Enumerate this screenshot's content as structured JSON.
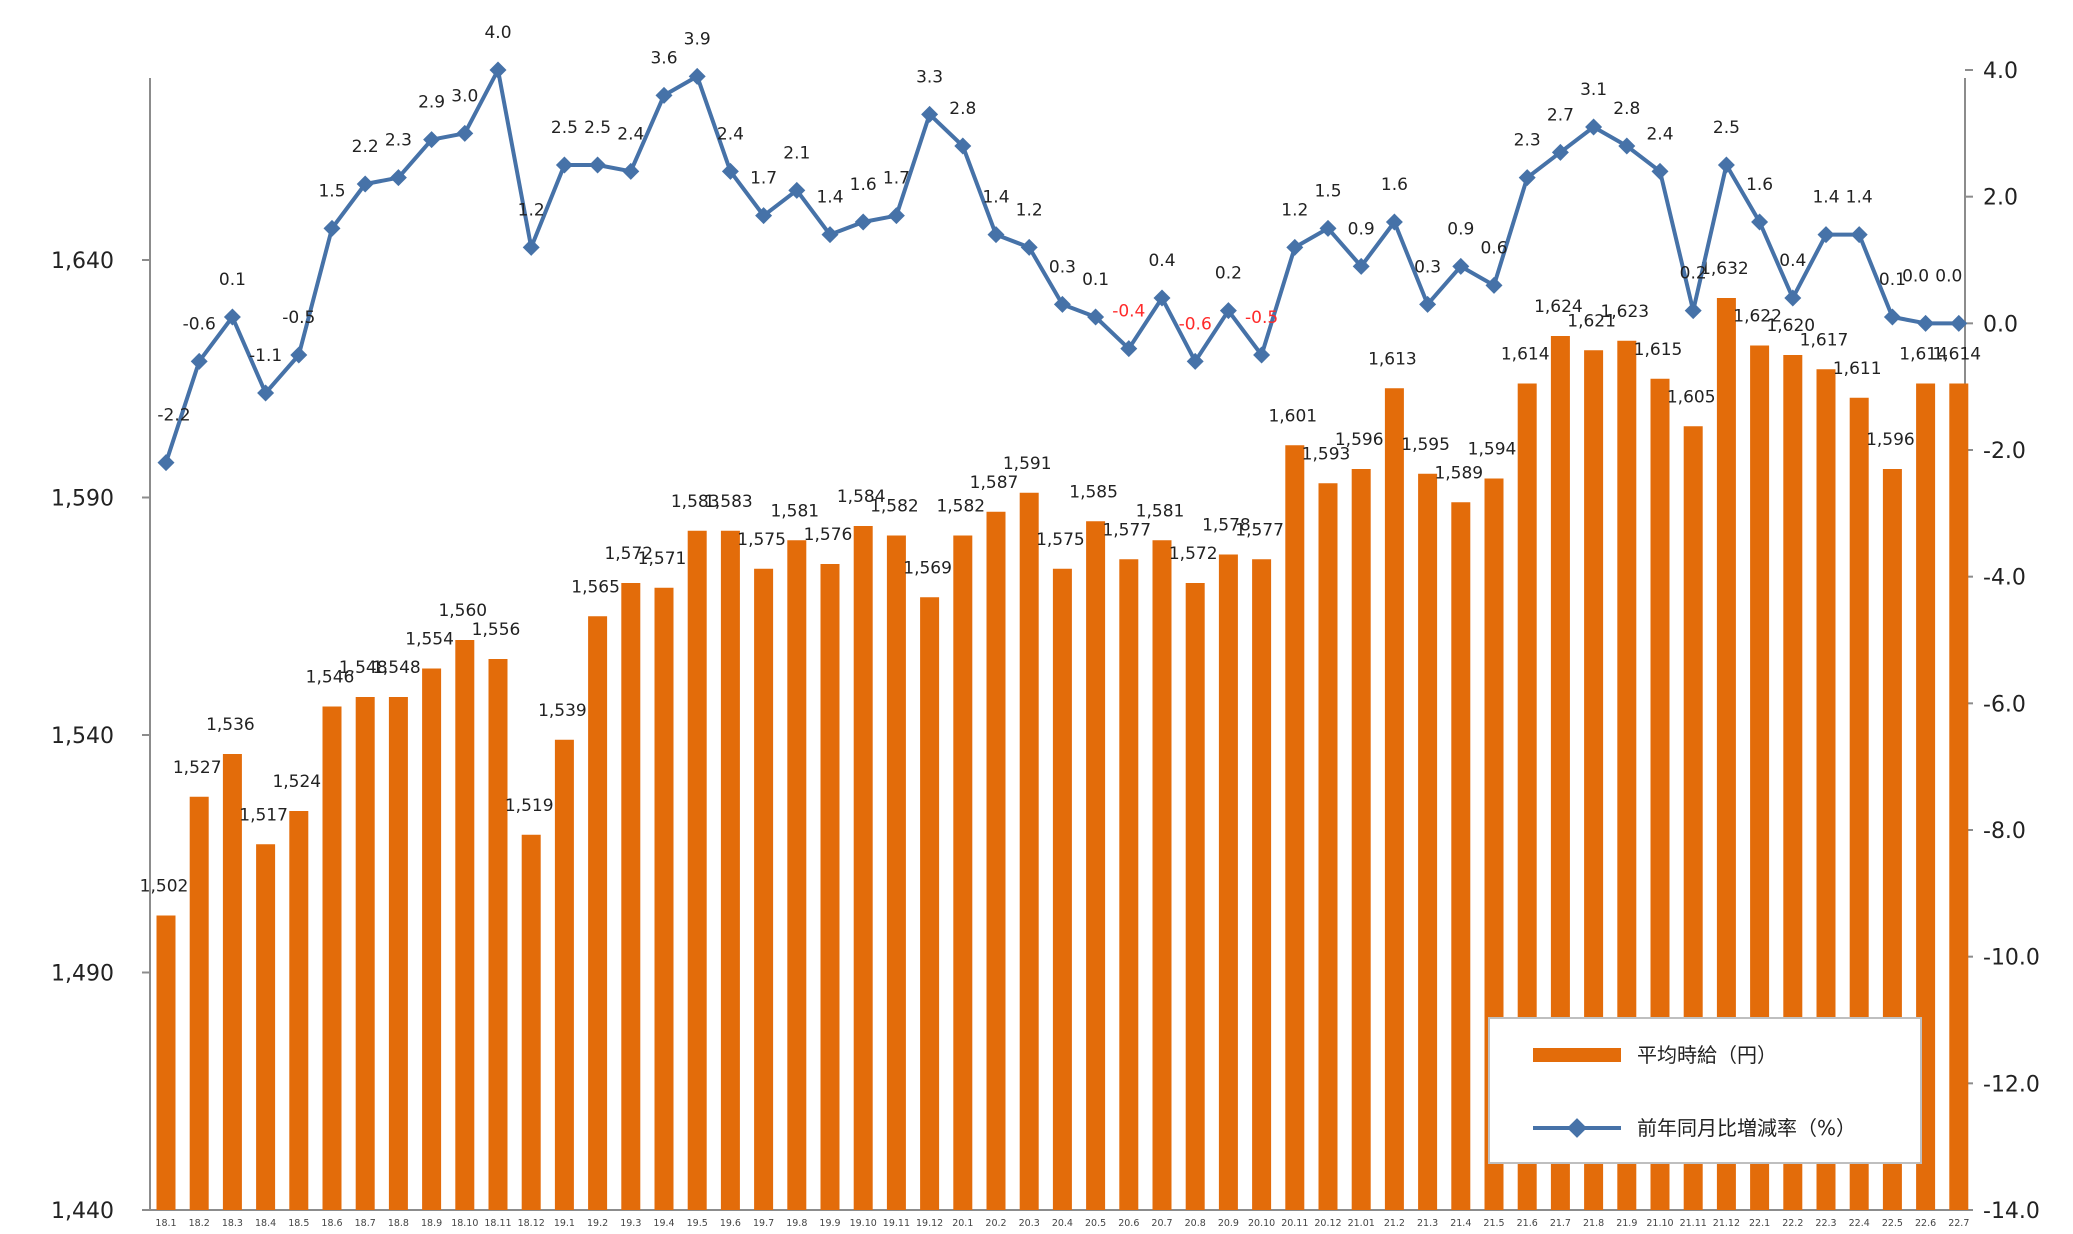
{
  "chart_data": {
    "type": "bar",
    "categories": [
      "18.1",
      "18.2",
      "18.3",
      "18.4",
      "18.5",
      "18.6",
      "18.7",
      "18.8",
      "18.9",
      "18.10",
      "18.11",
      "18.12",
      "19.1",
      "19.2",
      "19.3",
      "19.4",
      "19.5",
      "19.6",
      "19.7",
      "19.8",
      "19.9",
      "19.10",
      "19.11",
      "19.12",
      "20.1",
      "20.2",
      "20.3",
      "20.4",
      "20.5",
      "20.6",
      "20.7",
      "20.8",
      "20.9",
      "20.10",
      "20.11",
      "20.12",
      "21.01",
      "21.2",
      "21.3",
      "21.4",
      "21.5",
      "21.6",
      "21.7",
      "21.8",
      "21.9",
      "21.10",
      "21.11",
      "21.12",
      "22.1",
      "22.2",
      "22.3",
      "22.4",
      "22.5",
      "22.6",
      "22.7"
    ],
    "series": [
      {
        "name": "平均時給（円）",
        "type": "bar",
        "axis": "left",
        "color": "#e36c0a",
        "values": [
          1502,
          1527,
          1536,
          1517,
          1524,
          1546,
          1548,
          1548,
          1554,
          1560,
          1556,
          1519,
          1539,
          1565,
          1572,
          1571,
          1583,
          1583,
          1575,
          1581,
          1576,
          1584,
          1582,
          1569,
          1582,
          1587,
          1591,
          1575,
          1585,
          1577,
          1581,
          1572,
          1578,
          1577,
          1601,
          1593,
          1596,
          1613,
          1595,
          1589,
          1594,
          1614,
          1624,
          1621,
          1623,
          1615,
          1605,
          1632,
          1622,
          1620,
          1617,
          1611,
          1596,
          1614,
          1614
        ],
        "labels": [
          "1,502",
          "1,527",
          "1,536",
          "1,517",
          "1,524",
          "1,546",
          "1,548",
          "1,548",
          "1,554",
          "1,560",
          "1,556",
          "1,519",
          "1,539",
          "1,565",
          "1,572",
          "1,571",
          "1,583",
          "1,583",
          "1,575",
          "1,581",
          "1,576",
          "1,584",
          "1,582",
          "1,569",
          "1,582",
          "1,587",
          "1,591",
          "1,575",
          "1,585",
          "1,577",
          "1,581",
          "1,572",
          "1,578",
          "1,577",
          "1,601",
          "1,593",
          "1,596",
          "1,613",
          "1,595",
          "1,589",
          "1,594",
          "1,614",
          "1,624",
          "1,621",
          "1,623",
          "1,615",
          "1,605",
          "1,632",
          "1,622",
          "1,620",
          "1,617",
          "1,611",
          "1,596",
          "1,614",
          "1,614"
        ]
      },
      {
        "name": "前年同月比増減率（%）",
        "type": "line",
        "axis": "right",
        "color": "#4672a8",
        "values": [
          -2.2,
          -0.6,
          0.1,
          -1.1,
          -0.5,
          1.5,
          2.2,
          2.3,
          2.9,
          3.0,
          4.0,
          1.2,
          2.5,
          2.5,
          2.4,
          3.6,
          3.9,
          2.4,
          1.7,
          2.1,
          1.4,
          1.6,
          1.7,
          3.3,
          2.8,
          1.4,
          1.2,
          0.3,
          0.1,
          -0.4,
          0.4,
          -0.6,
          0.2,
          -0.5,
          1.2,
          1.5,
          0.9,
          1.6,
          0.3,
          0.9,
          0.6,
          2.3,
          2.7,
          3.1,
          2.8,
          2.4,
          0.2,
          2.5,
          1.6,
          0.4,
          1.4,
          1.4,
          0.1,
          0.0,
          0.0
        ],
        "labels": [
          "-2.2",
          "-0.6",
          "0.1",
          "-1.1",
          "-0.5",
          "1.5",
          "2.2",
          "2.3",
          "2.9",
          "3.0",
          "4.0",
          "1.2",
          "2.5",
          "2.5",
          "2.4",
          "3.6",
          "3.9",
          "2.4",
          "1.7",
          "2.1",
          "1.4",
          "1.6",
          "1.7",
          "3.3",
          "2.8",
          "1.4",
          "1.2",
          "0.3",
          "0.1",
          "-0.4",
          "0.4",
          "-0.6",
          "0.2",
          "-0.5",
          "1.2",
          "1.5",
          "0.9",
          "1.6",
          "0.3",
          "0.9",
          "0.6",
          "2.3",
          "2.7",
          "3.1",
          "2.8",
          "2.4",
          "0.2",
          "2.5",
          "1.6",
          "0.4",
          "1.4",
          "1.4",
          "0.1",
          "0.0",
          "0.0"
        ]
      }
    ],
    "negative_label_color": "#ff2a2a",
    "left_axis": {
      "range": [
        1440,
        1680
      ],
      "ticks": [
        1440,
        1490,
        1540,
        1590,
        1640
      ],
      "tick_labels": [
        "1,440",
        "1,490",
        "1,540",
        "1,590",
        "1,640"
      ]
    },
    "right_axis": {
      "range": [
        -14.0,
        4.0
      ],
      "ticks": [
        -14,
        -12,
        -10,
        -8,
        -6,
        -4,
        -2,
        0,
        2,
        4
      ],
      "tick_labels": [
        "-14.0",
        "-12.0",
        "-10.0",
        "-8.0",
        "-6.0",
        "-4.0",
        "-2.0",
        "0.0",
        "2.0",
        "4.0"
      ]
    },
    "legend": {
      "position": "bottom-right",
      "entries": [
        "平均時給（円）",
        "前年同月比増減率（%）"
      ]
    },
    "grid": false
  }
}
